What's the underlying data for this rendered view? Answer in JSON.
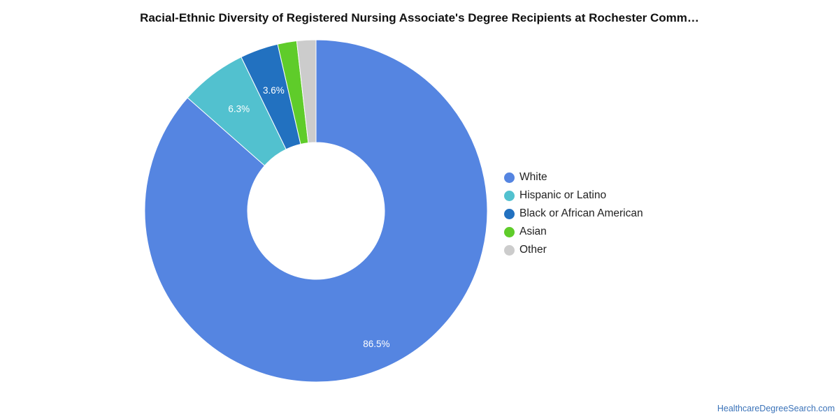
{
  "chart_data": {
    "type": "pie",
    "title": "Racial-Ethnic Diversity of Registered Nursing Associate's Degree Recipients at Rochester Comm…",
    "donut": true,
    "legend_position": "right",
    "series": [
      {
        "name": "White",
        "value": 86.5,
        "label": "86.5%",
        "color": "#5585e1"
      },
      {
        "name": "Hispanic or Latino",
        "value": 6.3,
        "label": "6.3%",
        "color": "#52c1cf"
      },
      {
        "name": "Black or African American",
        "value": 3.6,
        "label": "3.6%",
        "color": "#2271c0"
      },
      {
        "name": "Asian",
        "value": 1.8,
        "label": "",
        "color": "#5fcc2a"
      },
      {
        "name": "Other",
        "value": 1.8,
        "label": "",
        "color": "#cccccc"
      }
    ]
  },
  "footer": {
    "source": "HealthcareDegreeSearch.com"
  }
}
